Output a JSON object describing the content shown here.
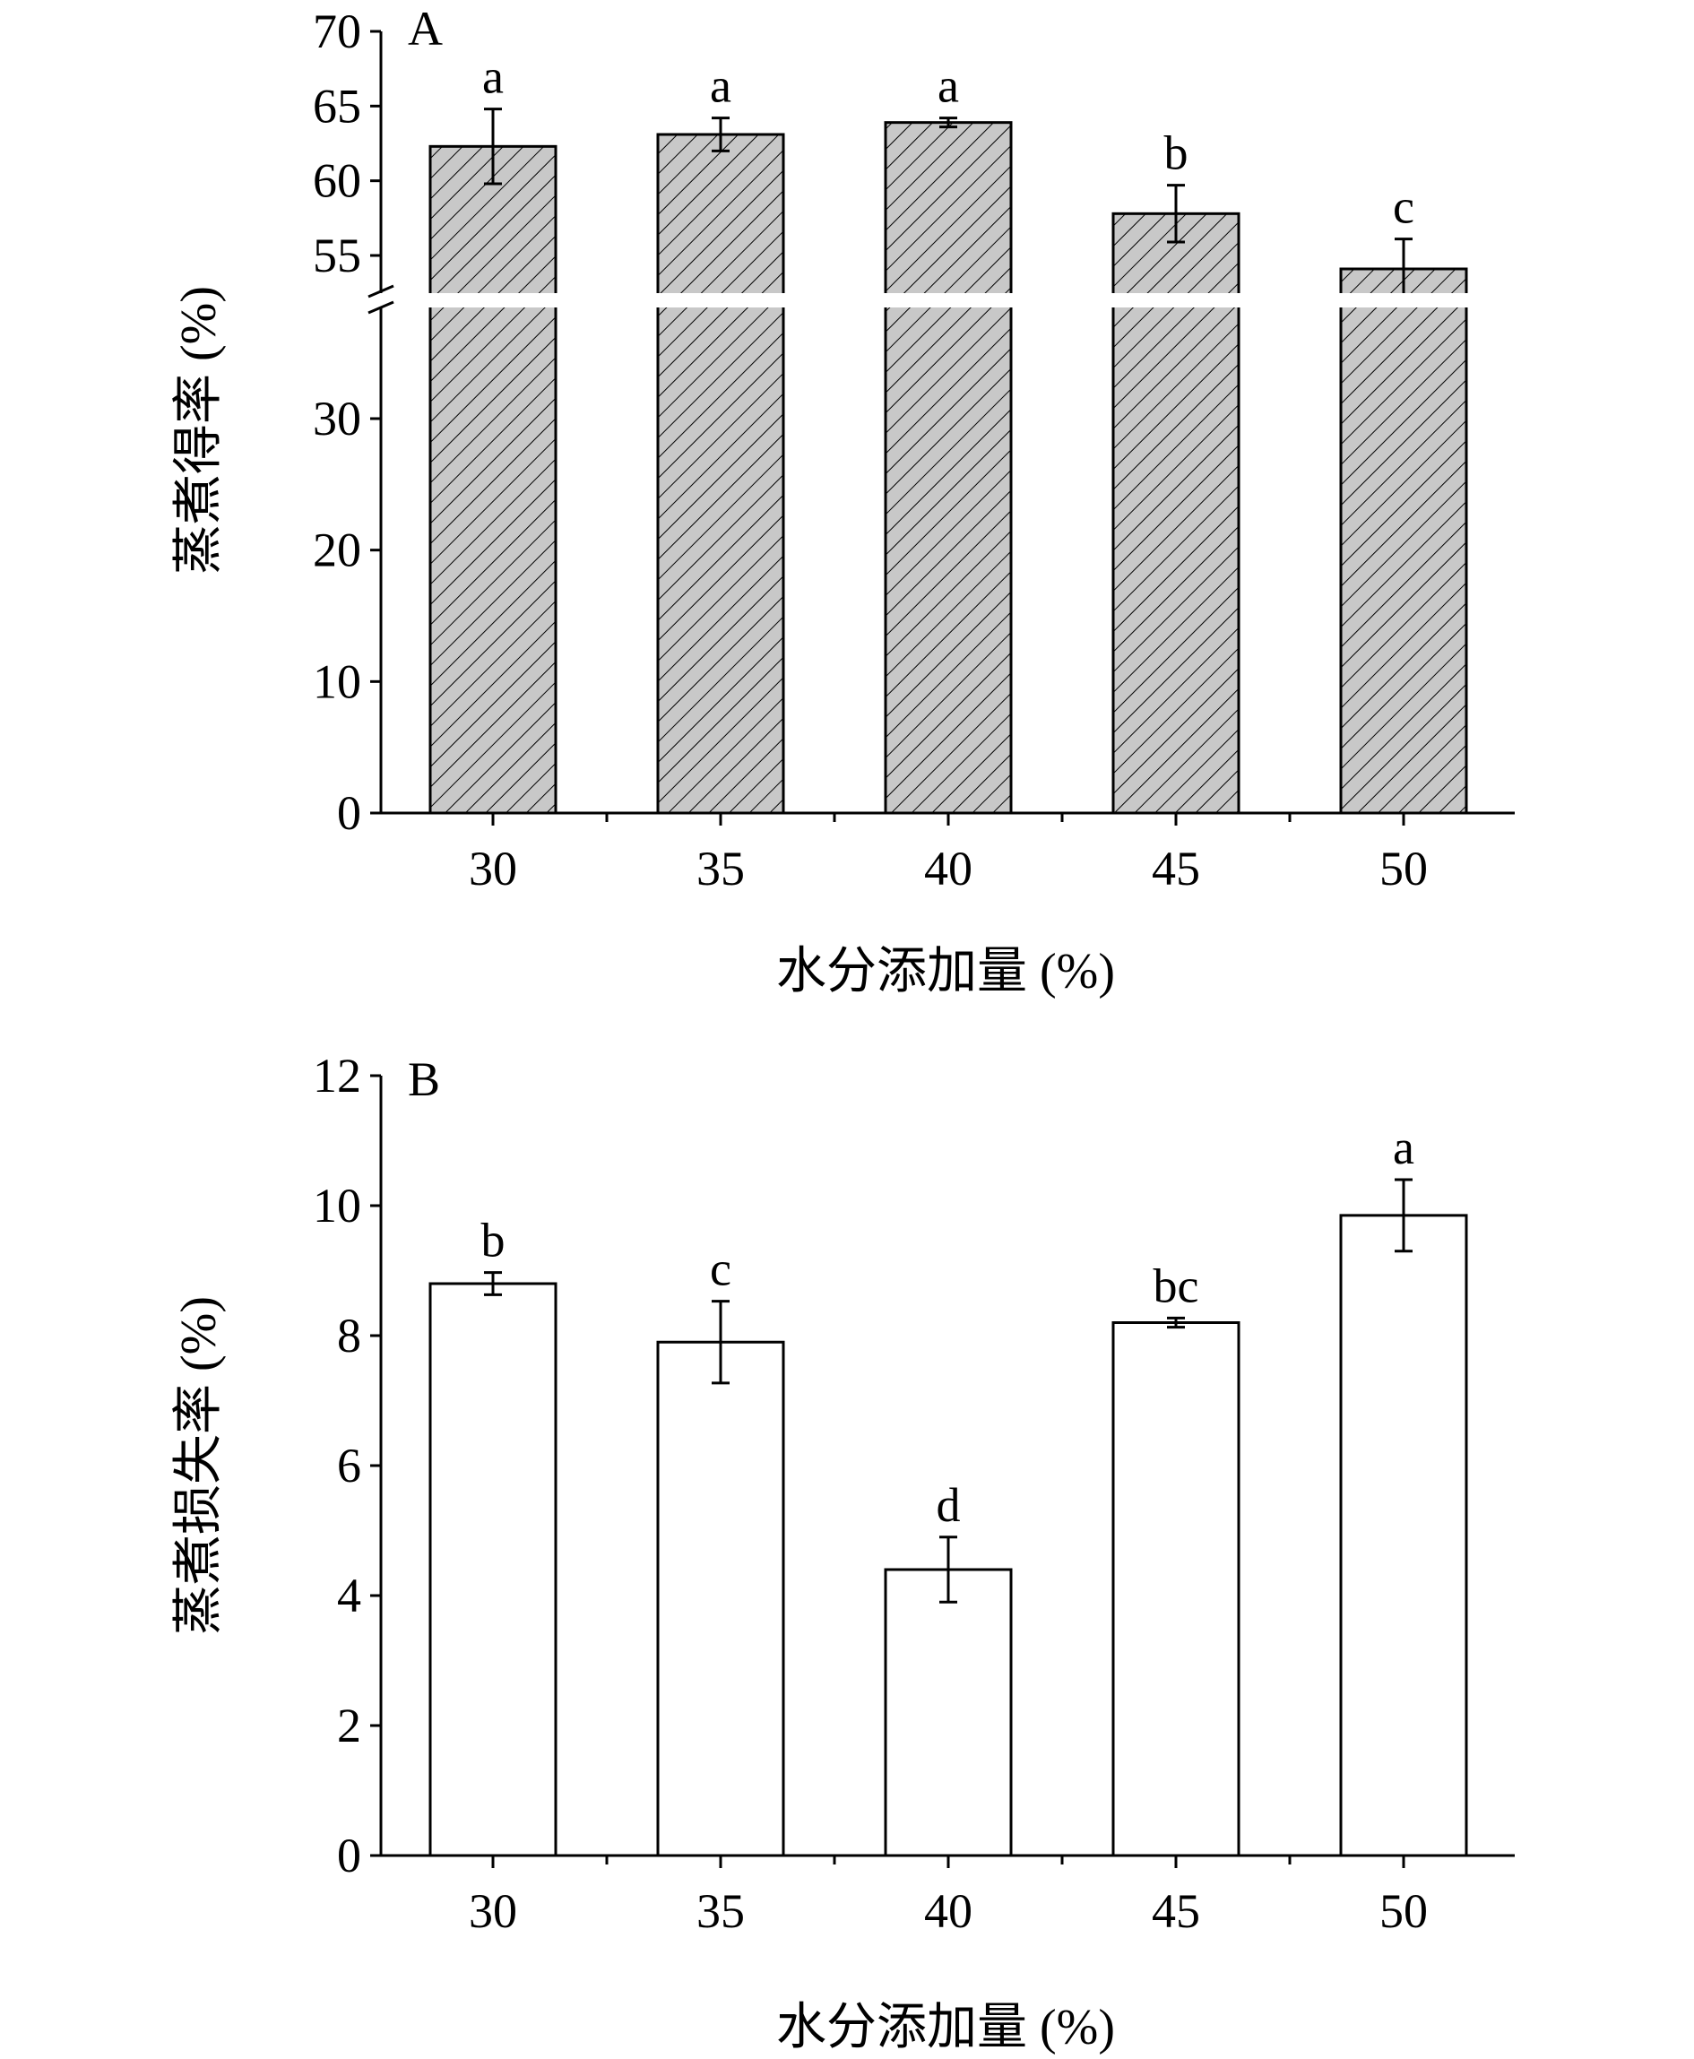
{
  "chart_data": [
    {
      "type": "bar",
      "panel_label": "A",
      "xlabel": "水分添加量 (%)",
      "ylabel": "蒸煮得率 (%)",
      "categories": [
        "30",
        "35",
        "40",
        "45",
        "50"
      ],
      "values": [
        62.3,
        63.1,
        63.9,
        57.8,
        54.1
      ],
      "errors": [
        2.5,
        1.1,
        0.3,
        1.9,
        2.0
      ],
      "significance": [
        "a",
        "a",
        "a",
        "b",
        "c"
      ],
      "y_axis_break": true,
      "ylim_lower": [
        0,
        39
      ],
      "ylim_upper": [
        52,
        70
      ],
      "yticks_lower": [
        "0",
        "10",
        "20",
        "30"
      ],
      "yticks_upper": [
        "55",
        "60",
        "65",
        "70"
      ],
      "bar_fill": "#c8c8c8",
      "bar_pattern": "diagonal-hatch"
    },
    {
      "type": "bar",
      "panel_label": "B",
      "xlabel": "水分添加量 (%)",
      "ylabel": "蒸煮损失率 (%)",
      "categories": [
        "30",
        "35",
        "40",
        "45",
        "50"
      ],
      "values": [
        8.8,
        7.9,
        4.4,
        8.2,
        9.85
      ],
      "errors": [
        0.17,
        0.63,
        0.5,
        0.07,
        0.55
      ],
      "significance": [
        "b",
        "c",
        "d",
        "bc",
        "a"
      ],
      "ylim": [
        0,
        12
      ],
      "yticks": [
        "0",
        "2",
        "4",
        "6",
        "8",
        "10",
        "12"
      ],
      "bar_fill": "#ffffff"
    }
  ]
}
